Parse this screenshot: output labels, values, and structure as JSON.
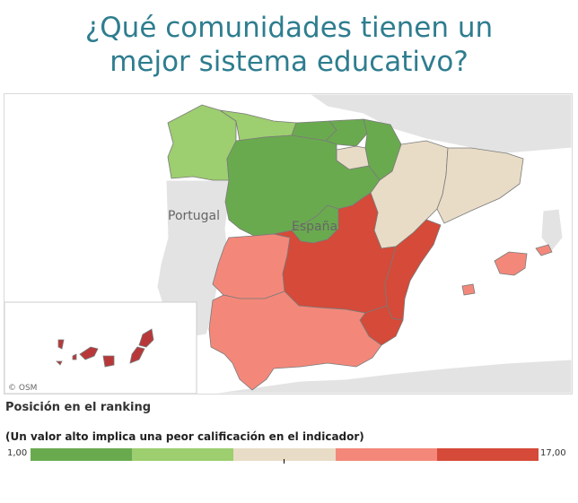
{
  "title_line1": "¿Qué comunidades tienen un",
  "title_line2": "mejor sistema educativo?",
  "map": {
    "label_portugal": "Portugal",
    "label_espana": "España",
    "attribution": "© OSM"
  },
  "legend": {
    "title": "Posición en el ranking",
    "subtitle": "(Un valor alto implica una peor calificación en el indicador)",
    "min": "1,00",
    "max": "17,00",
    "colors": [
      "#6aaa4f",
      "#9dce6f",
      "#e8dcc6",
      "#f3887a",
      "#d54a38"
    ]
  }
}
